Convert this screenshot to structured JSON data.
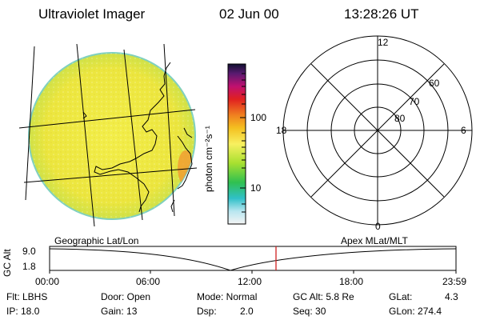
{
  "header": {
    "instrument": "Ultraviolet Imager",
    "date": "02 Jun 00",
    "time": "13:28:26 UT"
  },
  "colorbar": {
    "unit_label": "photon cm⁻²s⁻¹",
    "ticks": [
      "100",
      "10"
    ]
  },
  "polar": {
    "clock_labels": [
      "12",
      "18",
      "6",
      "0"
    ],
    "lat_labels": [
      "60",
      "70",
      "80"
    ]
  },
  "labels": {
    "geographic": "Geographic Lat/Lon",
    "apex": "Apex MLat/MLT"
  },
  "timeline": {
    "axis_label": "GC Alt",
    "y_ticks": [
      "9.0",
      "1.8"
    ],
    "x_ticks": [
      "00:00",
      "06:00",
      "12:00",
      "18:00",
      "23:59"
    ]
  },
  "info": {
    "row1": [
      "Flt: LBHS",
      "Door: Open",
      "Mode: Normal",
      "GC Alt: 5.8 Re",
      "GLat:",
      "4.3"
    ],
    "row2": [
      "IP: 18.0",
      "Gain: 13",
      "Dsp:",
      "2.0",
      "Seq: 30",
      "GLon: 274.4"
    ]
  },
  "colors": {
    "image_fill": "#efe94a",
    "marker": "#d02020"
  }
}
